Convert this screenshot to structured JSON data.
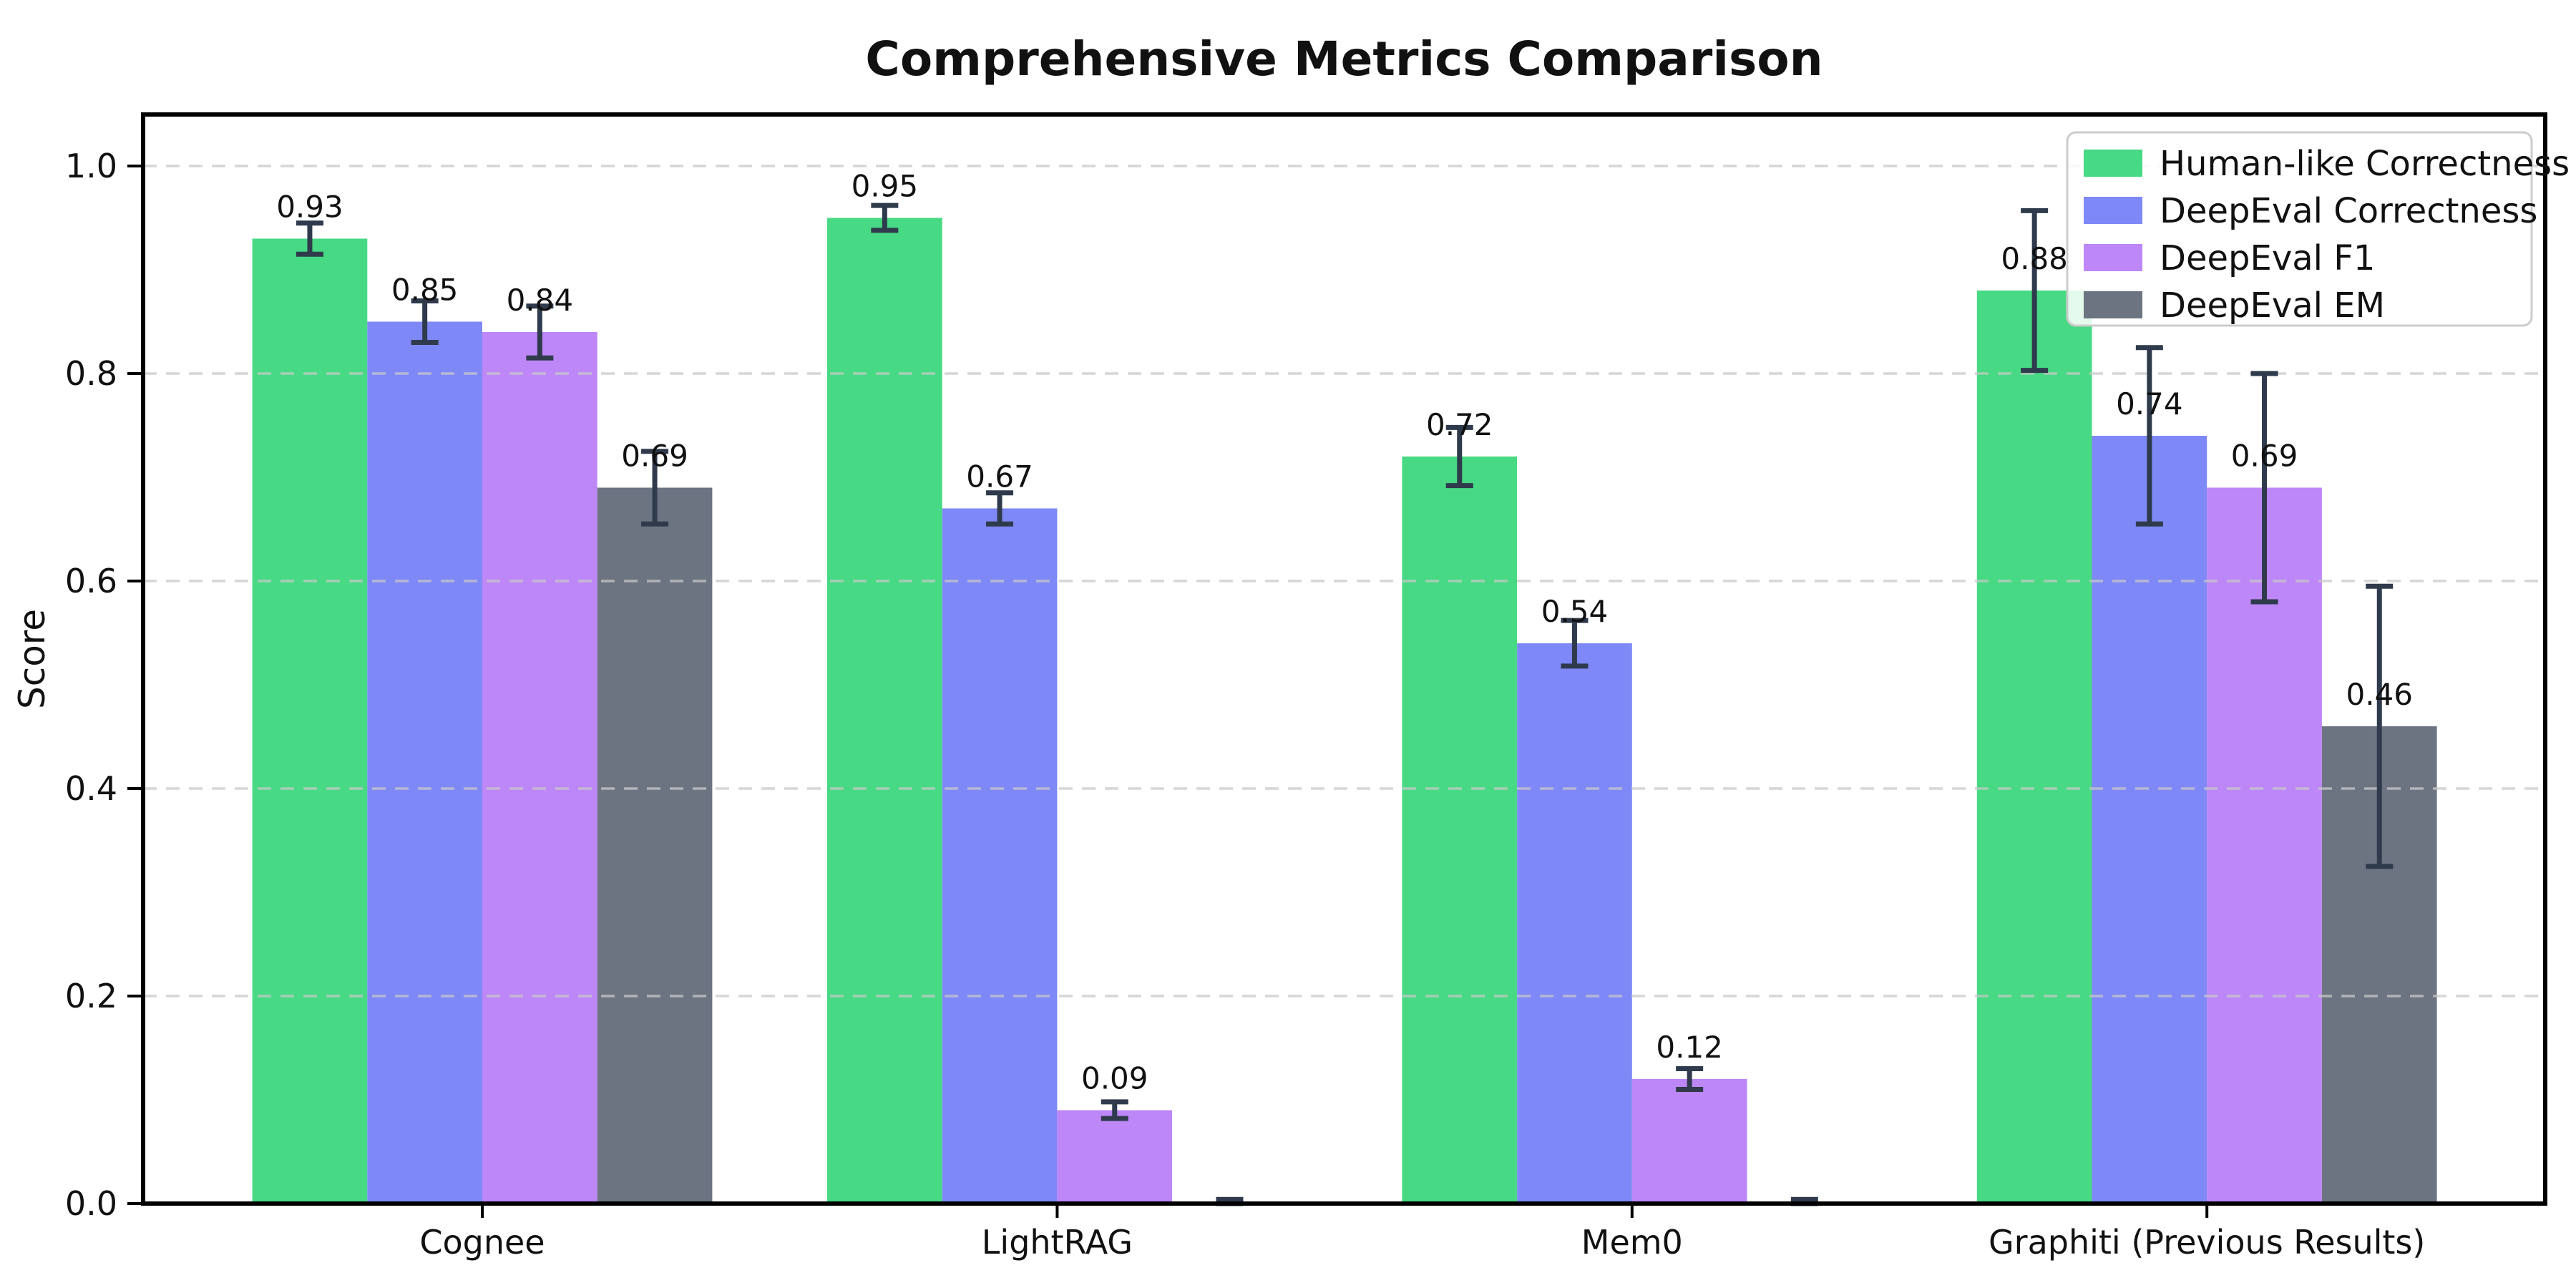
{
  "chart_data": {
    "type": "bar",
    "title": "Comprehensive Metrics Comparison",
    "xlabel": "",
    "ylabel": "Score",
    "categories": [
      "Cognee",
      "LightRAG",
      "Mem0",
      "Graphiti (Previous Results)"
    ],
    "series": [
      {
        "name": "Human-like Correctness",
        "color": "#47d983",
        "values": [
          0.93,
          0.95,
          0.72,
          0.88
        ],
        "errors": [
          0.015,
          0.012,
          0.028,
          0.077
        ],
        "labels": [
          "0.93",
          "0.95",
          "0.72",
          "0.88"
        ]
      },
      {
        "name": "DeepEval Correctness",
        "color": "#7f88f7",
        "values": [
          0.85,
          0.67,
          0.54,
          0.74
        ],
        "errors": [
          0.02,
          0.015,
          0.022,
          0.085
        ],
        "labels": [
          "0.85",
          "0.67",
          "0.54",
          "0.74"
        ]
      },
      {
        "name": "DeepEval F1",
        "color": "#bd87f8",
        "values": [
          0.84,
          0.09,
          0.12,
          0.69
        ],
        "errors": [
          0.025,
          0.008,
          0.01,
          0.11
        ],
        "labels": [
          "0.84",
          "0.09",
          "0.12",
          "0.69"
        ]
      },
      {
        "name": "DeepEval EM",
        "color": "#6c7482",
        "values": [
          0.69,
          0.0,
          0.0,
          0.46
        ],
        "errors": [
          0.035,
          0.004,
          0.004,
          0.135
        ],
        "labels": [
          "0.69",
          null,
          null,
          "0.46"
        ]
      }
    ],
    "yticks": [
      {
        "value": 0.0,
        "label": "0.0"
      },
      {
        "value": 0.2,
        "label": "0.2"
      },
      {
        "value": 0.4,
        "label": "0.4"
      },
      {
        "value": 0.6,
        "label": "0.6"
      },
      {
        "value": 0.8,
        "label": "0.8"
      },
      {
        "value": 1.0,
        "label": "1.0"
      }
    ],
    "ylim": [
      0,
      1.05
    ],
    "grid": "horizontal-dashed",
    "legend_position": "upper-right",
    "colors": {
      "errorbar": "#2f3b4c",
      "grid": "#c9c9c9",
      "spine": "#000000",
      "text": "#111111",
      "legend_border": "#cccccc",
      "background": "#ffffff"
    }
  }
}
